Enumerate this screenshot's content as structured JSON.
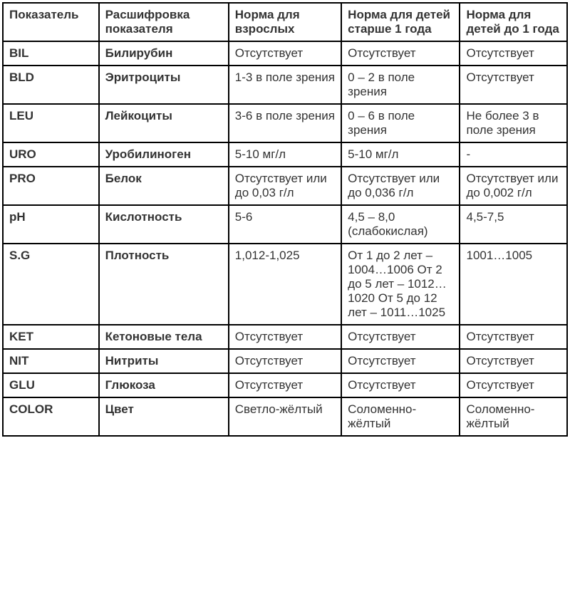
{
  "table": {
    "columns": [
      {
        "label": "Показатель",
        "width_pct": 17
      },
      {
        "label": "Расшифровка показателя",
        "width_pct": 23
      },
      {
        "label": "Норма для взрослых",
        "width_pct": 20
      },
      {
        "label": "Норма для детей старше 1 года",
        "width_pct": 21
      },
      {
        "label": "Норма для детей до 1 года",
        "width_pct": 19
      }
    ],
    "rows": [
      [
        "BIL",
        "Билирубин",
        "Отсутствует",
        "Отсутствует",
        "Отсутствует"
      ],
      [
        "BLD",
        "Эритроциты",
        "1-3 в поле зрения",
        "0 – 2 в поле зрения",
        "Отсутствует"
      ],
      [
        "LEU",
        "Лейкоциты",
        "3-6 в поле зрения",
        "0 – 6 в поле зрения",
        "Не более 3 в поле зрения"
      ],
      [
        "URO",
        "Уробилиноген",
        "5-10 мг/л",
        "5-10 мг/л",
        "-"
      ],
      [
        "PRO",
        "Белок",
        "Отсутствует или до 0,03 г/л",
        "Отсутствует или до 0,036 г/л",
        "Отсутствует или до 0,002 г/л"
      ],
      [
        "pH",
        "Кислотность",
        "5-6",
        "4,5 – 8,0 (слабокислая)",
        "4,5-7,5"
      ],
      [
        "S.G",
        "Плотность",
        "1,012-1,025",
        "От 1 до 2 лет – 1004…1006 От 2 до 5 лет – 1012…1020 От 5 до 12 лет – 1011…1025",
        "1001…1005"
      ],
      [
        "KET",
        "Кетоновые тела",
        "Отсутствует",
        "Отсутствует",
        "Отсутствует"
      ],
      [
        "NIT",
        "Нитриты",
        "Отсутствует",
        "Отсутствует",
        "Отсутствует"
      ],
      [
        "GLU",
        "Глюкоза",
        "Отсутствует",
        "Отсутствует",
        "Отсутствует"
      ],
      [
        "COLOR",
        "Цвет",
        "Светло-жёлтый",
        "Соломенно-жёлтый",
        "Соломенно-жёлтый"
      ]
    ],
    "border_color": "#000000",
    "text_color": "#333333",
    "background_color": "#ffffff",
    "font_family": "Verdana",
    "font_size_pt": 13
  }
}
